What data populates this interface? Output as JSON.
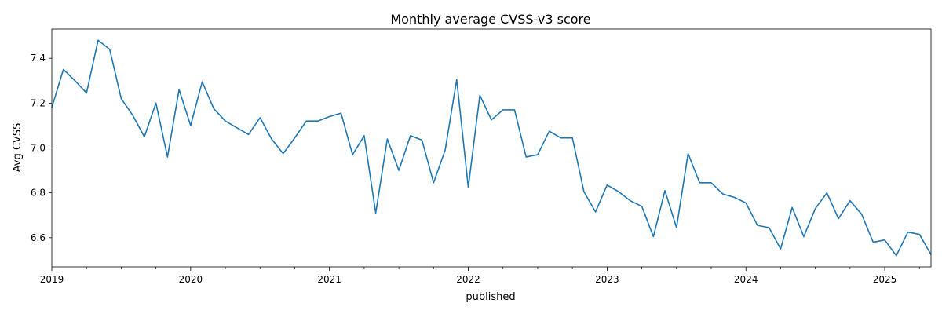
{
  "chart_data": {
    "type": "line",
    "title": "Monthly average CVSS-v3 score",
    "xlabel": "published",
    "ylabel": "Avg CVSS",
    "xlim": [
      "2019-01",
      "2025-05"
    ],
    "ylim": [
      6.47,
      7.53
    ],
    "yticks": [
      "6.6",
      "6.8",
      "7.0",
      "7.2",
      "7.4"
    ],
    "xticks": [
      "2019",
      "2020",
      "2021",
      "2022",
      "2023",
      "2024",
      "2025"
    ],
    "grid": false,
    "color": "#1f77b4",
    "series": [
      {
        "x": [
          "2019-01",
          "2019-02",
          "2019-03",
          "2019-04",
          "2019-05",
          "2019-06",
          "2019-07",
          "2019-08",
          "2019-09",
          "2019-10",
          "2019-11",
          "2019-12",
          "2020-01",
          "2020-02",
          "2020-03",
          "2020-04",
          "2020-05",
          "2020-06",
          "2020-07",
          "2020-08",
          "2020-09",
          "2020-10",
          "2020-11",
          "2020-12",
          "2021-01",
          "2021-02",
          "2021-03",
          "2021-04",
          "2021-05",
          "2021-06",
          "2021-07",
          "2021-08",
          "2021-09",
          "2021-10",
          "2021-11",
          "2021-12",
          "2022-01",
          "2022-02",
          "2022-03",
          "2022-04",
          "2022-05",
          "2022-06",
          "2022-07",
          "2022-08",
          "2022-09",
          "2022-10",
          "2022-11",
          "2022-12",
          "2023-01",
          "2023-02",
          "2023-03",
          "2023-04",
          "2023-05",
          "2023-06",
          "2023-07",
          "2023-08",
          "2023-09",
          "2023-10",
          "2023-11",
          "2023-12",
          "2024-01",
          "2024-02",
          "2024-03",
          "2024-04",
          "2024-05",
          "2024-06",
          "2024-07",
          "2024-08",
          "2024-09",
          "2024-10",
          "2024-11",
          "2024-12",
          "2025-01",
          "2025-02",
          "2025-03",
          "2025-04",
          "2025-05"
        ],
        "values": [
          7.18,
          7.35,
          7.3,
          7.245,
          7.48,
          7.44,
          7.22,
          7.145,
          7.05,
          7.2,
          6.96,
          7.26,
          7.1,
          7.295,
          7.175,
          7.12,
          7.09,
          7.06,
          7.135,
          7.04,
          6.975,
          7.045,
          7.12,
          7.12,
          7.14,
          7.155,
          6.97,
          7.055,
          6.71,
          7.04,
          6.9,
          7.055,
          7.035,
          6.845,
          6.99,
          7.305,
          6.825,
          7.235,
          7.125,
          7.17,
          7.17,
          6.96,
          6.97,
          7.075,
          7.045,
          7.045,
          6.805,
          6.715,
          6.835,
          6.805,
          6.765,
          6.74,
          6.605,
          6.81,
          6.645,
          6.975,
          6.845,
          6.845,
          6.795,
          6.78,
          6.755,
          6.655,
          6.645,
          6.55,
          6.735,
          6.605,
          6.73,
          6.8,
          6.685,
          6.765,
          6.705,
          6.58,
          6.59,
          6.52,
          6.625,
          6.615,
          6.525
        ]
      }
    ]
  }
}
